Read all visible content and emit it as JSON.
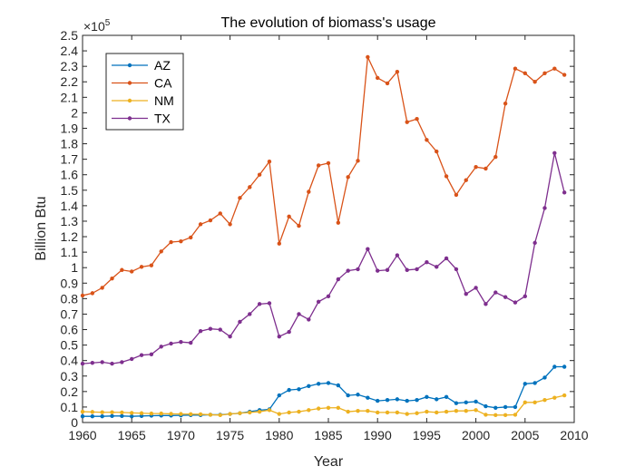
{
  "chart_data": {
    "type": "line",
    "title": "The evolution of biomass's usage",
    "xlabel": "Year",
    "ylabel": "Billion Btu",
    "exponent_label": "×10",
    "exponent_power": "5",
    "xlim": [
      1960,
      2010
    ],
    "ylim": [
      0,
      2.5
    ],
    "xticks": [
      "1960",
      "1965",
      "1970",
      "1975",
      "1980",
      "1985",
      "1990",
      "1995",
      "2000",
      "2005",
      "2010"
    ],
    "yticks": [
      "0",
      "0.1",
      "0.2",
      "0.3",
      "0.4",
      "0.5",
      "0.6",
      "0.7",
      "0.8",
      "0.9",
      "1",
      "1.1",
      "1.2",
      "1.3",
      "1.4",
      "1.5",
      "1.6",
      "1.7",
      "1.8",
      "1.9",
      "2",
      "2.1",
      "2.2",
      "2.3",
      "2.4",
      "2.5"
    ],
    "grid": false,
    "legend_position": "top-left",
    "x": [
      1960,
      1961,
      1962,
      1963,
      1964,
      1965,
      1966,
      1967,
      1968,
      1969,
      1970,
      1971,
      1972,
      1973,
      1974,
      1975,
      1976,
      1977,
      1978,
      1979,
      1980,
      1981,
      1982,
      1983,
      1984,
      1985,
      1986,
      1987,
      1988,
      1989,
      1990,
      1991,
      1992,
      1993,
      1994,
      1995,
      1996,
      1997,
      1998,
      1999,
      2000,
      2001,
      2002,
      2003,
      2004,
      2005,
      2006,
      2007,
      2008,
      2009
    ],
    "series": [
      {
        "name": "AZ",
        "color": "#0072BD",
        "values": [
          0.04,
          0.04,
          0.04,
          0.042,
          0.042,
          0.04,
          0.042,
          0.044,
          0.045,
          0.045,
          0.046,
          0.048,
          0.048,
          0.05,
          0.05,
          0.055,
          0.06,
          0.07,
          0.08,
          0.085,
          0.175,
          0.21,
          0.215,
          0.235,
          0.25,
          0.255,
          0.24,
          0.175,
          0.18,
          0.16,
          0.14,
          0.145,
          0.15,
          0.14,
          0.145,
          0.165,
          0.15,
          0.165,
          0.125,
          0.13,
          0.135,
          0.105,
          0.095,
          0.1,
          0.1,
          0.25,
          0.255,
          0.29,
          0.36,
          0.36
        ]
      },
      {
        "name": "CA",
        "color": "#D95319",
        "values": [
          0.82,
          0.835,
          0.87,
          0.93,
          0.985,
          0.975,
          1.005,
          1.015,
          1.105,
          1.165,
          1.17,
          1.195,
          1.28,
          1.305,
          1.35,
          1.28,
          1.45,
          1.52,
          1.6,
          1.685,
          1.155,
          1.33,
          1.27,
          1.49,
          1.66,
          1.675,
          1.29,
          1.585,
          1.69,
          2.36,
          2.225,
          2.19,
          2.265,
          1.94,
          1.96,
          1.825,
          1.75,
          1.59,
          1.47,
          1.565,
          1.65,
          1.64,
          1.715,
          2.06,
          2.285,
          2.255,
          2.2,
          2.255,
          2.285,
          2.245
        ]
      },
      {
        "name": "NM",
        "color": "#EDB120",
        "values": [
          0.07,
          0.068,
          0.066,
          0.066,
          0.065,
          0.062,
          0.06,
          0.058,
          0.058,
          0.056,
          0.055,
          0.054,
          0.053,
          0.05,
          0.048,
          0.055,
          0.06,
          0.065,
          0.07,
          0.08,
          0.055,
          0.065,
          0.07,
          0.08,
          0.09,
          0.095,
          0.095,
          0.07,
          0.075,
          0.075,
          0.065,
          0.065,
          0.065,
          0.055,
          0.06,
          0.07,
          0.065,
          0.07,
          0.075,
          0.075,
          0.08,
          0.05,
          0.048,
          0.048,
          0.05,
          0.13,
          0.13,
          0.145,
          0.16,
          0.175
        ]
      },
      {
        "name": "TX",
        "color": "#7E2F8E",
        "values": [
          0.38,
          0.385,
          0.39,
          0.38,
          0.39,
          0.41,
          0.435,
          0.44,
          0.49,
          0.51,
          0.52,
          0.515,
          0.59,
          0.605,
          0.6,
          0.555,
          0.65,
          0.7,
          0.765,
          0.77,
          0.555,
          0.585,
          0.7,
          0.665,
          0.78,
          0.815,
          0.925,
          0.98,
          0.99,
          1.12,
          0.98,
          0.985,
          1.08,
          0.985,
          0.99,
          1.035,
          1.005,
          1.06,
          0.99,
          0.83,
          0.87,
          0.765,
          0.84,
          0.81,
          0.775,
          0.815,
          1.16,
          1.385,
          1.74,
          1.485
        ]
      }
    ]
  }
}
